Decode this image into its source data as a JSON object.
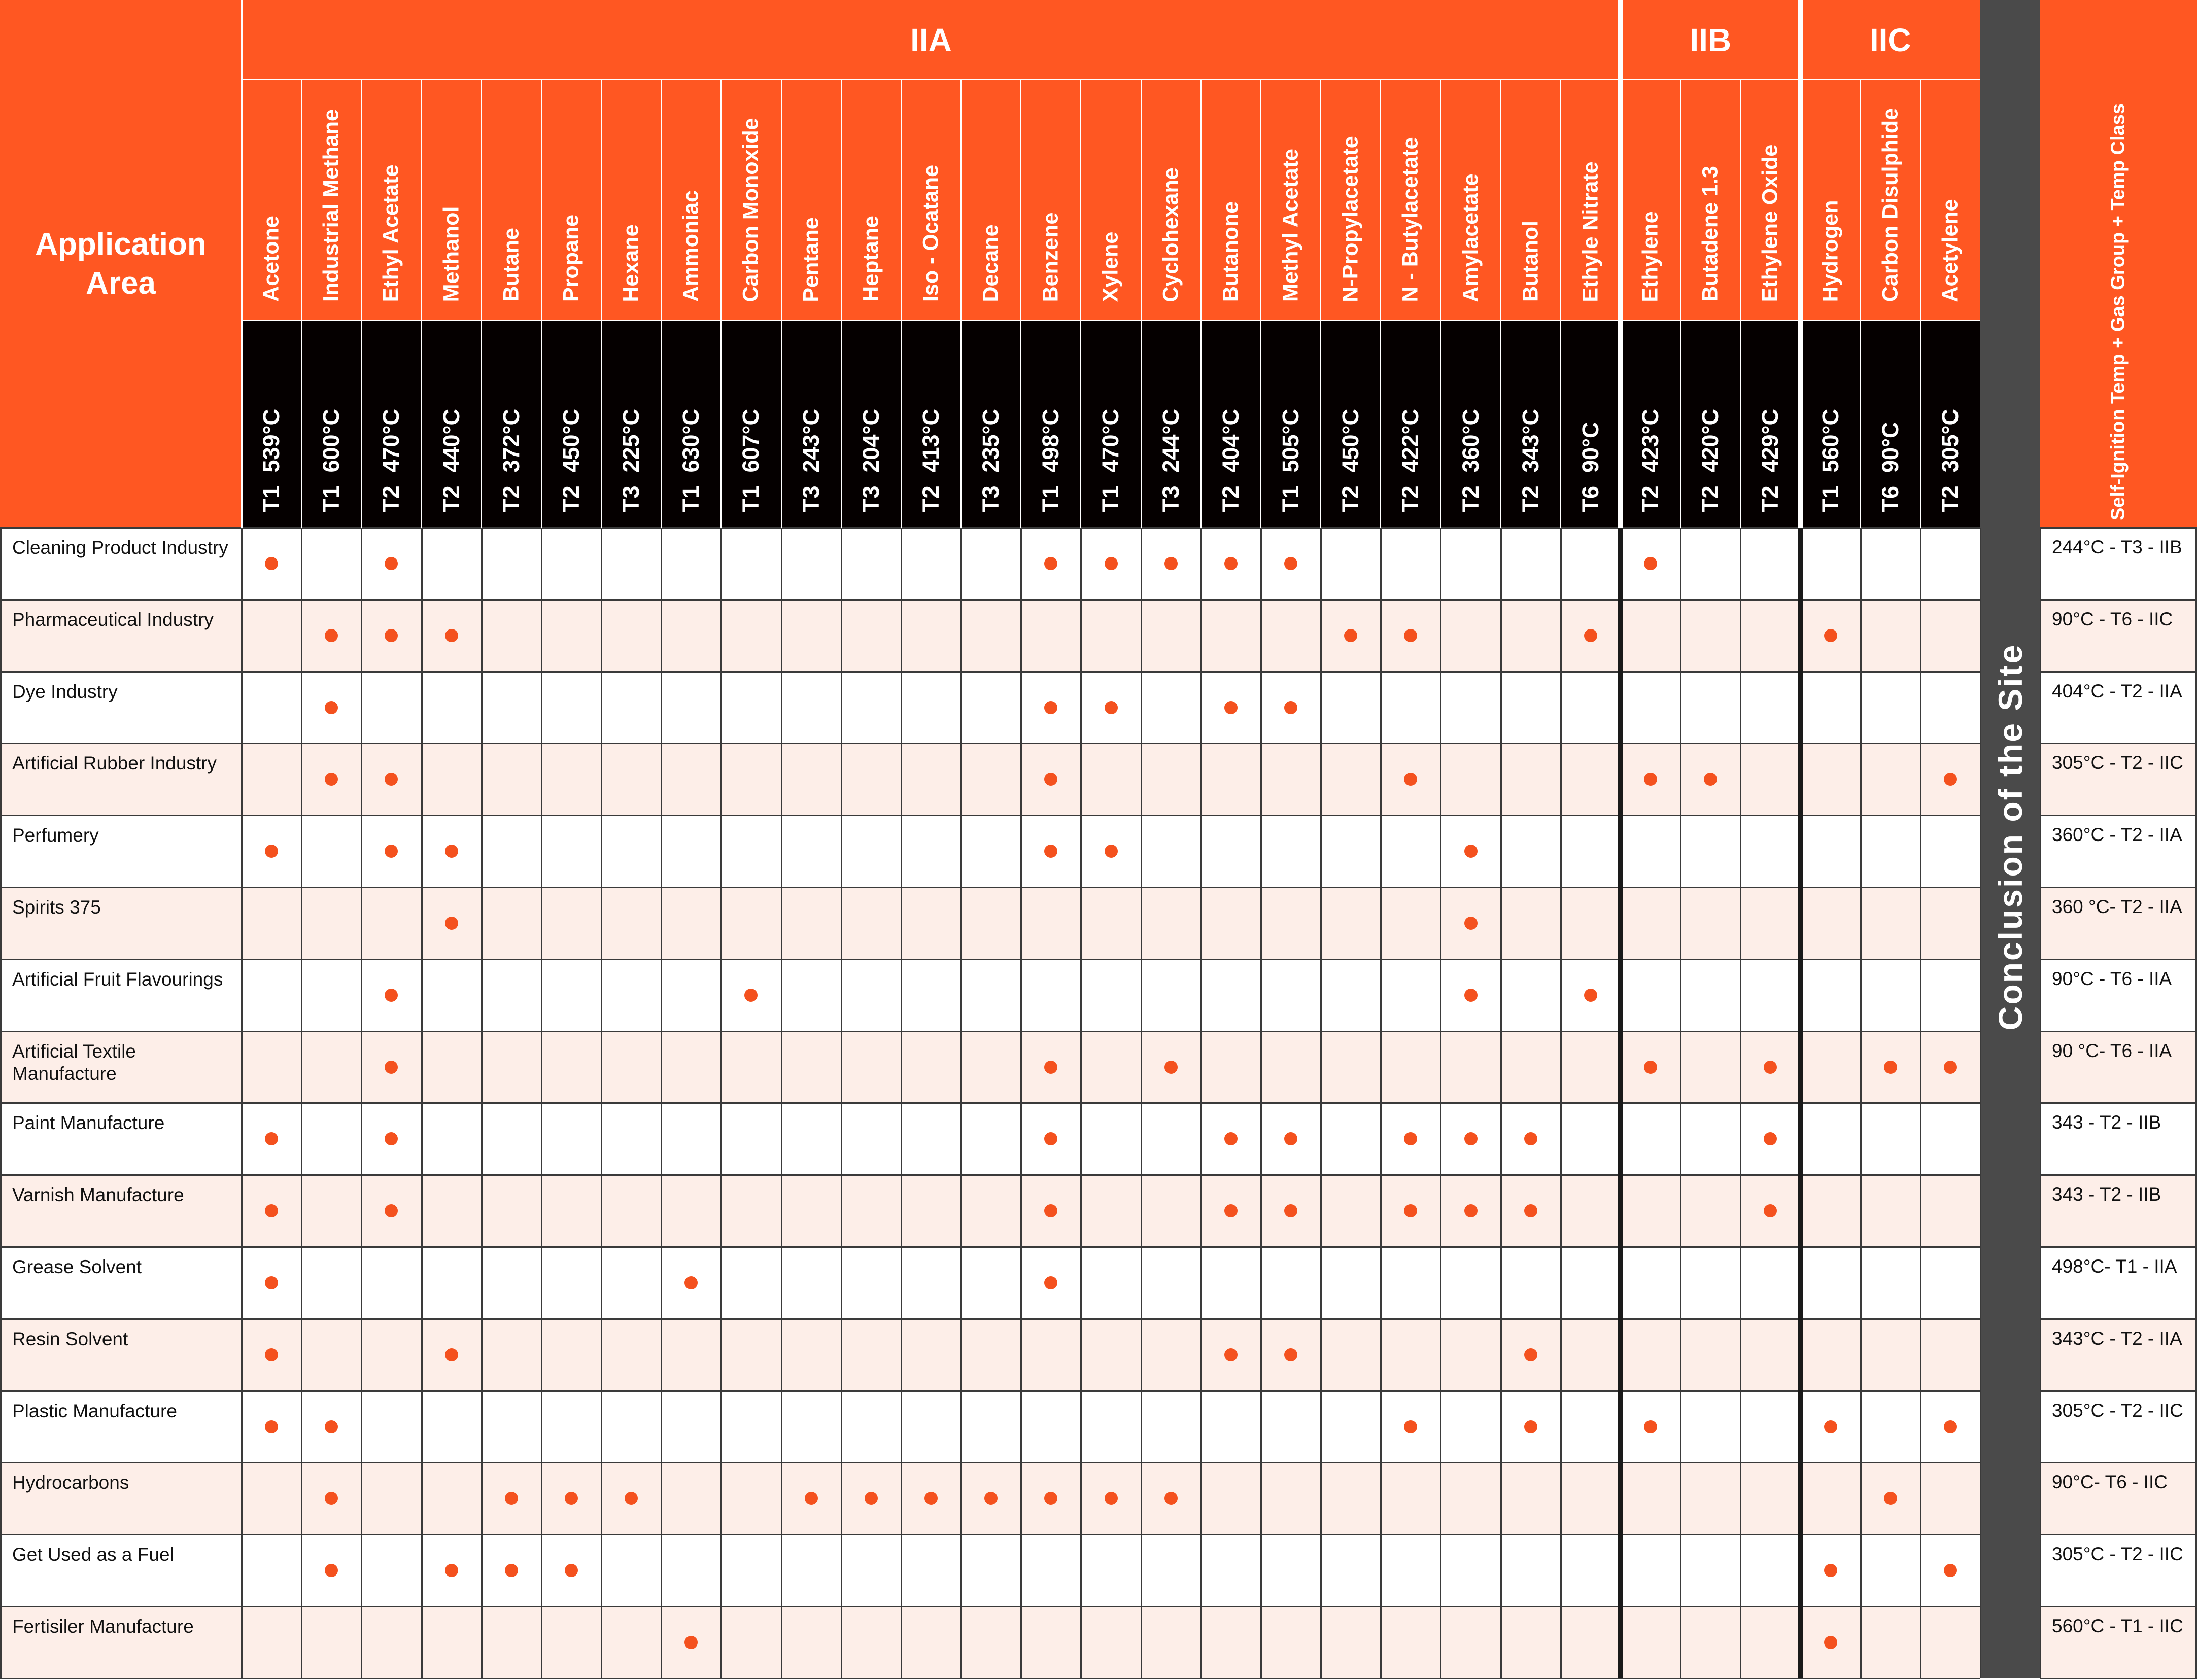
{
  "header": {
    "application_area": [
      "Application",
      "Area"
    ],
    "conclusion_title": "Conclusion of the Site",
    "summary_title": "Self-Ignition Temp + Gas Group + Temp Class"
  },
  "groups": [
    {
      "name": "IIA"
    },
    {
      "name": "IIB"
    },
    {
      "name": "IIC"
    }
  ],
  "gases": [
    {
      "name": "Acetone",
      "temp": "539°C",
      "class": "T1"
    },
    {
      "name": "Industrial Methane",
      "temp": "600°C",
      "class": "T1"
    },
    {
      "name": "Ethyl Acetate",
      "temp": "470°C",
      "class": "T2"
    },
    {
      "name": "Methanol",
      "temp": "440°C",
      "class": "T2"
    },
    {
      "name": "Butane",
      "temp": "372°C",
      "class": "T2"
    },
    {
      "name": "Propane",
      "temp": "450°C",
      "class": "T2"
    },
    {
      "name": "Hexane",
      "temp": "225°C",
      "class": "T3"
    },
    {
      "name": "Ammoniac",
      "temp": "630°C",
      "class": "T1"
    },
    {
      "name": "Carbon Monoxide",
      "temp": "607°C",
      "class": "T1"
    },
    {
      "name": "Pentane",
      "temp": "243°C",
      "class": "T3"
    },
    {
      "name": "Heptane",
      "temp": "204°C",
      "class": "T3"
    },
    {
      "name": "Iso - Ocatane",
      "temp": "413°C",
      "class": "T2"
    },
    {
      "name": "Decane",
      "temp": "235°C",
      "class": "T3"
    },
    {
      "name": "Benzene",
      "temp": "498°C",
      "class": "T1"
    },
    {
      "name": "Xylene",
      "temp": "470°C",
      "class": "T1"
    },
    {
      "name": "Cyclohexane",
      "temp": "244°C",
      "class": "T3"
    },
    {
      "name": "Butanone",
      "temp": "404°C",
      "class": "T2"
    },
    {
      "name": "Methyl Acetate",
      "temp": "505°C",
      "class": "T1"
    },
    {
      "name": "N-Propylacetate",
      "temp": "450°C",
      "class": "T2"
    },
    {
      "name": "N - Butylacetate",
      "temp": "422°C",
      "class": "T2"
    },
    {
      "name": "Amylacetate",
      "temp": "360°C",
      "class": "T2"
    },
    {
      "name": "Butanol",
      "temp": "343°C",
      "class": "T2"
    },
    {
      "name": "Ethyle Nitrate",
      "temp": "90°C",
      "class": "T6"
    },
    {
      "name": "Ethylene",
      "temp": "423°C",
      "class": "T2"
    },
    {
      "name": "Butadene 1.3",
      "temp": "420°C",
      "class": "T2"
    },
    {
      "name": "Ethylene Oxide",
      "temp": "429°C",
      "class": "T2"
    },
    {
      "name": "Hydrogen",
      "temp": "560°C",
      "class": "T1"
    },
    {
      "name": "Carbon Disulphide",
      "temp": "90°C",
      "class": "T6"
    },
    {
      "name": "Acetylene",
      "temp": "305°C",
      "class": "T2"
    }
  ],
  "rows": [
    {
      "label": "Cleaning Product Industry",
      "summary": "244°C - T3 - IIB",
      "marks": [
        0,
        2,
        13,
        14,
        15,
        16,
        17,
        23
      ]
    },
    {
      "label": "Pharmaceutical Industry",
      "summary": "90°C - T6 - IIC",
      "marks": [
        1,
        2,
        3,
        18,
        19,
        22,
        26
      ]
    },
    {
      "label": "Dye Industry",
      "summary": "404°C - T2 - IIA",
      "marks": [
        1,
        13,
        14,
        16,
        17
      ]
    },
    {
      "label": "Artificial Rubber Industry",
      "summary": "305°C - T2 - IIC",
      "marks": [
        1,
        2,
        13,
        19,
        23,
        24,
        28
      ]
    },
    {
      "label": "Perfumery",
      "summary": "360°C - T2 - IIA",
      "marks": [
        0,
        2,
        3,
        13,
        14,
        20
      ]
    },
    {
      "label": "Spirits 375",
      "summary": "360 °C- T2 - IIA",
      "marks": [
        3,
        20
      ]
    },
    {
      "label": "Artificial Fruit Flavourings",
      "summary": "90°C - T6 - IIA",
      "marks": [
        2,
        8,
        20,
        22
      ]
    },
    {
      "label": "Artificial Textile Manufacture",
      "summary": "90 °C- T6 - IIA",
      "marks": [
        2,
        13,
        15,
        23,
        25,
        27,
        28
      ]
    },
    {
      "label": "Paint Manufacture",
      "summary": "343 - T2 - IIB",
      "marks": [
        0,
        2,
        13,
        16,
        17,
        19,
        20,
        21,
        25
      ]
    },
    {
      "label": "Varnish Manufacture",
      "summary": "343 - T2 - IIB",
      "marks": [
        0,
        2,
        13,
        16,
        17,
        19,
        20,
        21,
        25
      ]
    },
    {
      "label": "Grease Solvent",
      "summary": "498°C- T1 - IIA",
      "marks": [
        0,
        7,
        13
      ]
    },
    {
      "label": "Resin Solvent",
      "summary": "343°C - T2 - IIA",
      "marks": [
        0,
        3,
        16,
        17,
        21
      ]
    },
    {
      "label": "Plastic Manufacture",
      "summary": "305°C - T2 - IIC",
      "marks": [
        0,
        1,
        19,
        21,
        23,
        26,
        28
      ]
    },
    {
      "label": "Hydrocarbons",
      "summary": "90°C- T6 - IIC",
      "marks": [
        1,
        4,
        5,
        6,
        9,
        10,
        11,
        12,
        13,
        14,
        15,
        27
      ]
    },
    {
      "label": "Get Used as a Fuel",
      "summary": "305°C - T2 - IIC",
      "marks": [
        1,
        3,
        4,
        5,
        26,
        28
      ]
    },
    {
      "label": "Fertisiler Manufacture",
      "summary": "560°C - T1 - IIC",
      "marks": [
        7,
        26
      ]
    }
  ],
  "colors": {
    "accent": "#ff5722",
    "dot": "#f4511e",
    "black_band": "#050000",
    "conclusion_band": "#4a4a4a",
    "row_alt": "#fdeee8",
    "row_white": "#ffffff"
  }
}
